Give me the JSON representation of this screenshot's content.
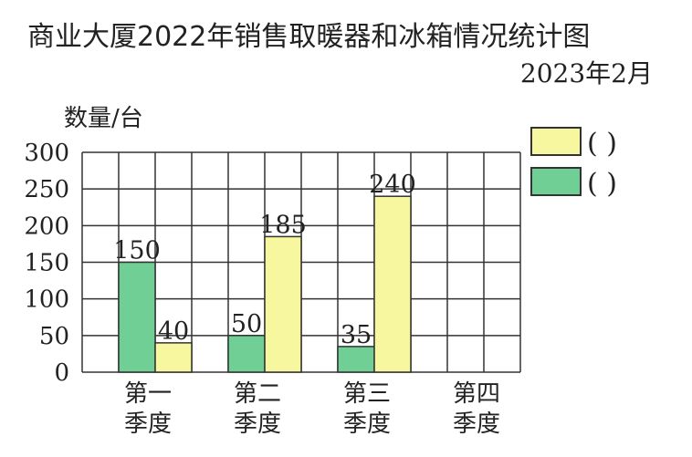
{
  "header": {
    "title": "商业大厦2022年销售取暖器和冰箱情况统计图",
    "date": "2023年2月"
  },
  "colors": {
    "series_a": "#f7f7a0",
    "series_b": "#6fcf94"
  },
  "legend": {
    "entries": [
      {
        "text": "(     )",
        "color_key": "series_a"
      },
      {
        "text": "(     )",
        "color_key": "series_b"
      }
    ]
  },
  "chart_data": {
    "type": "bar",
    "title": "商业大厦2022年销售取暖器和冰箱情况统计图",
    "ylabel": "数量/台",
    "ylim": [
      0,
      300
    ],
    "yticks": [
      0,
      50,
      100,
      150,
      200,
      250,
      300
    ],
    "grid": true,
    "legend_position": "top-right",
    "categories": [
      [
        "第一",
        "季度"
      ],
      [
        "第二",
        "季度"
      ],
      [
        "第三",
        "季度"
      ],
      [
        "第四",
        "季度"
      ]
    ],
    "series": [
      {
        "values": [
          150,
          50,
          35,
          null
        ],
        "color_key": "series_b"
      },
      {
        "values": [
          40,
          185,
          240,
          null
        ],
        "color_key": "series_a"
      }
    ]
  }
}
